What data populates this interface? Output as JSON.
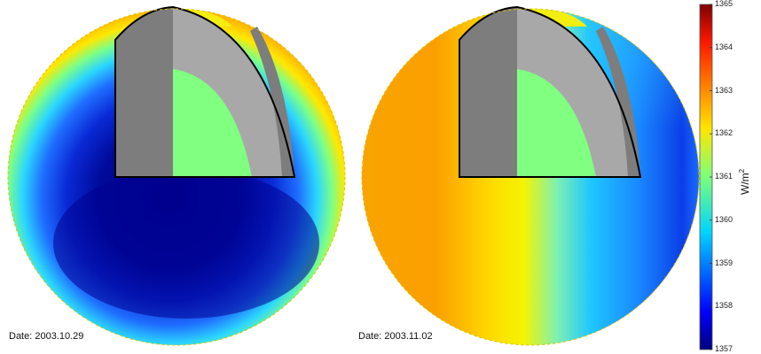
{
  "panels": [
    {
      "date_label": "Date: 2003.10.29"
    },
    {
      "date_label": "Date: 2003.11.02"
    }
  ],
  "colorbar": {
    "min": 1357,
    "max": 1365,
    "ticks": [
      "1357",
      "1358",
      "1359",
      "1360",
      "1361",
      "1362",
      "1363",
      "1364",
      "1365"
    ],
    "unit_base": "W/m",
    "unit_exp": "2",
    "colormap": "jet"
  },
  "colors": {
    "cutaway_light_gray": "#a8a8a8",
    "cutaway_dark_gray": "#7d7d7d",
    "core_green": "#80ff80",
    "outline": "#000000"
  }
}
